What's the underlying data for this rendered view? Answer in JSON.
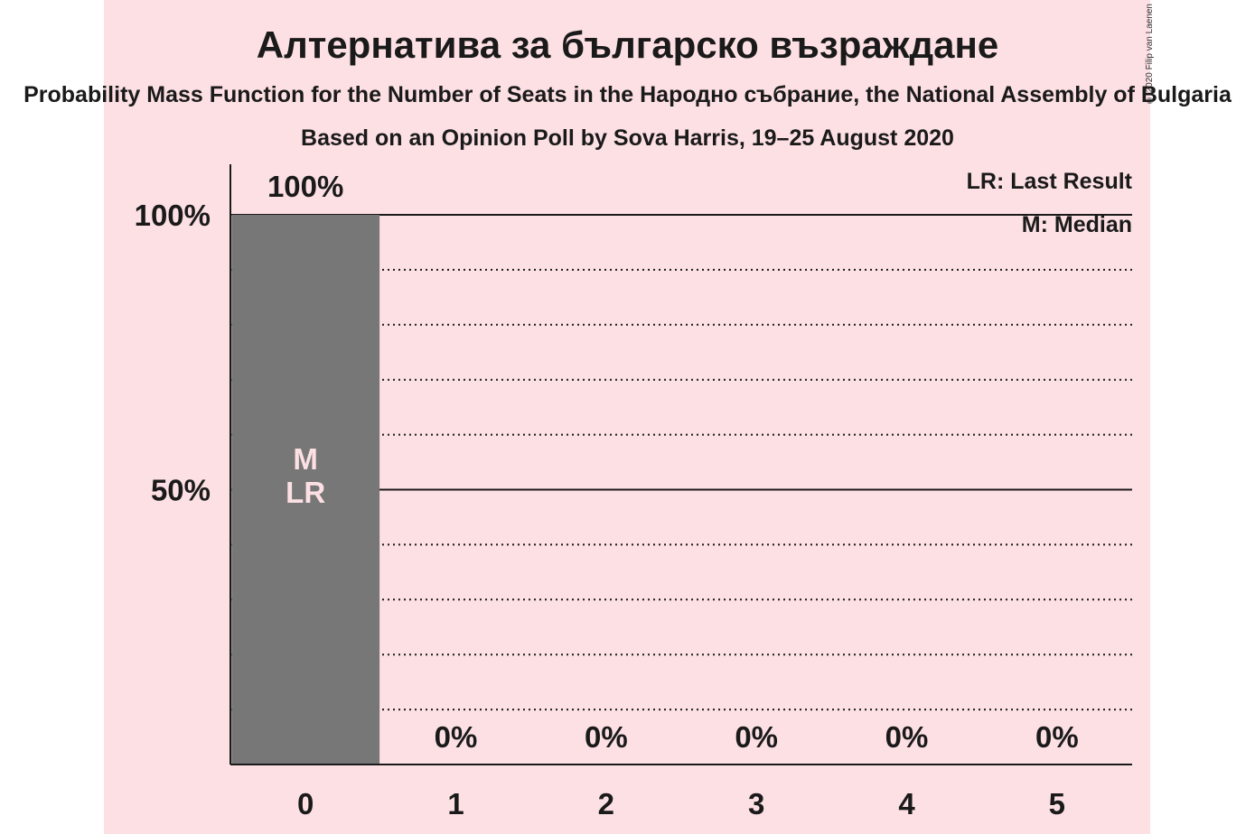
{
  "title": "Алтернатива за българско възраждане",
  "subtitle": "Probability Mass Function for the Number of Seats in the Народно събрание, the National Assembly of Bulgaria",
  "source": "Based on an Opinion Poll by Sova Harris, 19–25 August 2020",
  "copyright": "© 2020 Filip van Laenen",
  "legend": {
    "last_result": "LR: Last Result",
    "median": "M: Median"
  },
  "colors": {
    "background": "#fde0e4",
    "bar": "#777777",
    "text": "#1a1a1a"
  },
  "chart_data": {
    "type": "bar",
    "categories": [
      "0",
      "1",
      "2",
      "3",
      "4",
      "5"
    ],
    "values": [
      100,
      0,
      0,
      0,
      0,
      0
    ],
    "value_labels": [
      "100%",
      "0%",
      "0%",
      "0%",
      "0%",
      "0%"
    ],
    "bar_annotations": [
      [
        "M",
        "LR"
      ],
      [],
      [],
      [],
      [],
      []
    ],
    "yticks": [
      {
        "value": 50,
        "label": "50%"
      },
      {
        "value": 100,
        "label": "100%"
      }
    ],
    "minor_grid": [
      10,
      20,
      30,
      40,
      60,
      70,
      80,
      90
    ],
    "ylim": [
      0,
      100
    ],
    "legend_position": "top-right",
    "grid": true
  }
}
